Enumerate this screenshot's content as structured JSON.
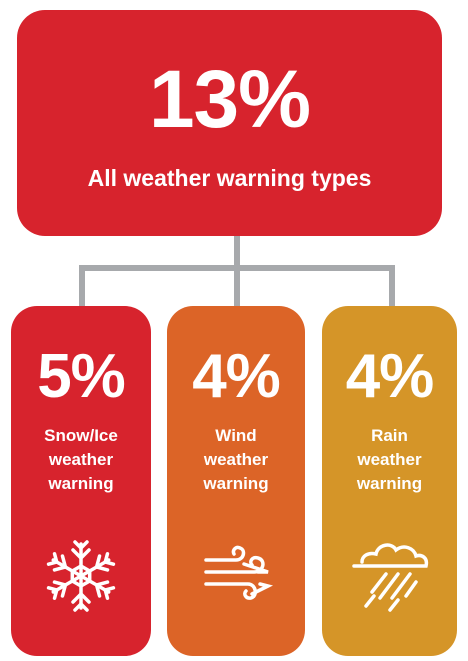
{
  "total": {
    "percent": "13%",
    "label": "All weather warning types"
  },
  "categories": [
    {
      "percent": "5%",
      "label_lines": [
        "Snow/Ice",
        "weather",
        "warning"
      ],
      "color": "#d7232d",
      "icon": "snowflake-icon"
    },
    {
      "percent": "4%",
      "label_lines": [
        "Wind",
        "weather",
        "warning"
      ],
      "color": "#dc6427",
      "icon": "wind-icon"
    },
    {
      "percent": "4%",
      "label_lines": [
        "Rain",
        "weather",
        "warning"
      ],
      "color": "#d59528",
      "icon": "rain-cloud-icon"
    }
  ],
  "colors": {
    "connector": "#a7a9ac",
    "text": "#ffffff"
  }
}
